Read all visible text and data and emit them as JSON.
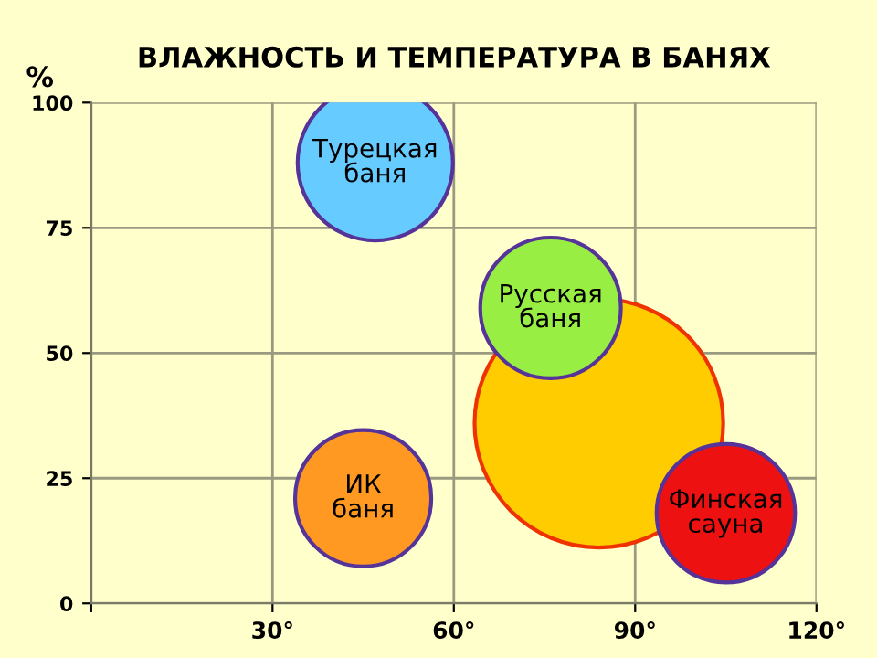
{
  "chart_data": {
    "type": "bubble",
    "title": "ВЛАЖНОСТЬ И ТЕМПЕРАТУРА В БАНЯХ",
    "ylabel": "%",
    "series": [
      {
        "name": "Турецкая\nбаня",
        "color": "#66ccff",
        "x": [
          47
        ],
        "values": [
          88
        ],
        "sizes": [
          0.39
        ]
      },
      {
        "color": "#ffcc00",
        "x": [
          84
        ],
        "values": [
          36
        ],
        "sizes": [
          1
        ]
      },
      {
        "name": "Русская\nбаня",
        "color": "#99ee44",
        "x": [
          76
        ],
        "values": [
          59
        ],
        "sizes": [
          0.32
        ]
      },
      {
        "name": "ИК\nбаня",
        "color": "#ff9922",
        "x": [
          45
        ],
        "values": [
          21
        ],
        "sizes": [
          0.3
        ]
      },
      {
        "name": "Финская\nсауна",
        "color": "#ee1111",
        "x": [
          105
        ],
        "values": [
          18
        ],
        "sizes": [
          0.31
        ]
      }
    ],
    "xlim": [
      0,
      120
    ],
    "ylim": [
      0,
      100
    ],
    "xticks": [
      {
        "value": 0,
        "label": null
      },
      {
        "value": 30,
        "label": "30°"
      },
      {
        "value": 60,
        "label": "60°"
      },
      {
        "value": 90,
        "label": "90°"
      },
      {
        "value": 120,
        "label": "120°"
      }
    ],
    "yticks": [
      0,
      25,
      50,
      75,
      100
    ],
    "grid": true
  }
}
